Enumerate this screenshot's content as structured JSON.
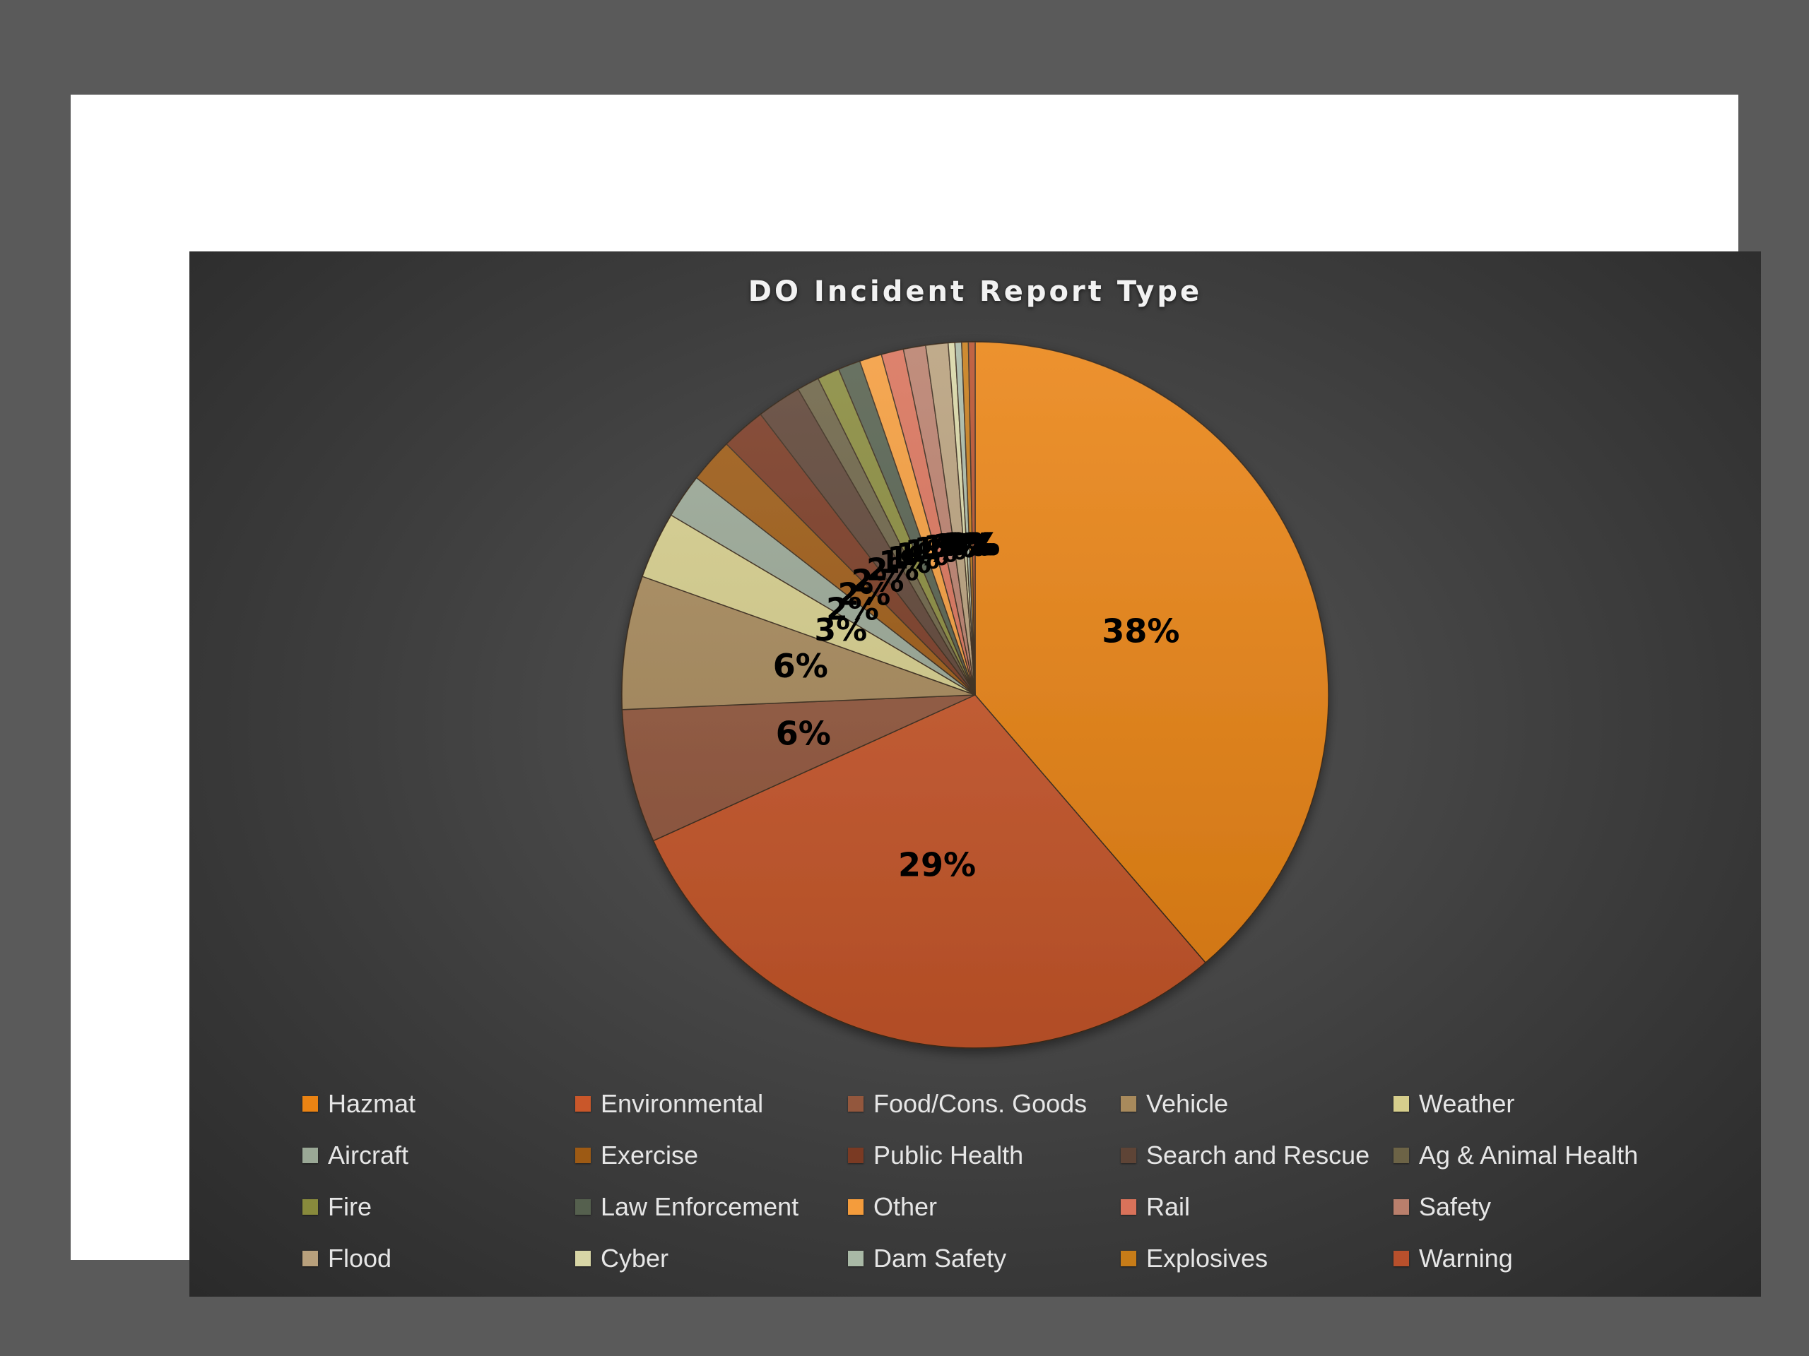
{
  "chart_data": {
    "type": "pie",
    "title": "DO Incident Report Type",
    "legend_position": "bottom",
    "categories": [
      "Hazmat",
      "Environmental",
      "Food/Cons. Goods",
      "Vehicle",
      "Weather",
      "Aircraft",
      "Exercise",
      "Public Health",
      "Search and Rescue",
      "Ag & Animal Health",
      "Fire",
      "Law Enforcement",
      "Other",
      "Rail",
      "Safety",
      "Flood",
      "Cyber",
      "Dam Safety",
      "Explosives",
      "Warning"
    ],
    "values": [
      38,
      29,
      6,
      6,
      3,
      2,
      2,
      2,
      2,
      1,
      1,
      1,
      1,
      1,
      1,
      1,
      0.3,
      0.3,
      0.3,
      0.3
    ],
    "data_labels": [
      "38%",
      "29%",
      "6%",
      "6%",
      "3%",
      "2%",
      "2%",
      "2%",
      "2%",
      "1%",
      "1%",
      "1%",
      "1%",
      "1%",
      "1%",
      "1%",
      "0%",
      "0%",
      "0%",
      "0%"
    ],
    "colors": [
      "#ea8313",
      "#c9572a",
      "#93573d",
      "#a88a5c",
      "#d6ce8c",
      "#9aa896",
      "#9d5a14",
      "#7a3a23",
      "#5e4436",
      "#6c6346",
      "#888a3c",
      "#55604e",
      "#f49c3c",
      "#d9725a",
      "#b97f6c",
      "#b8a07c",
      "#d8d6a6",
      "#a9b9a6",
      "#c77c18",
      "#b8502c"
    ]
  }
}
